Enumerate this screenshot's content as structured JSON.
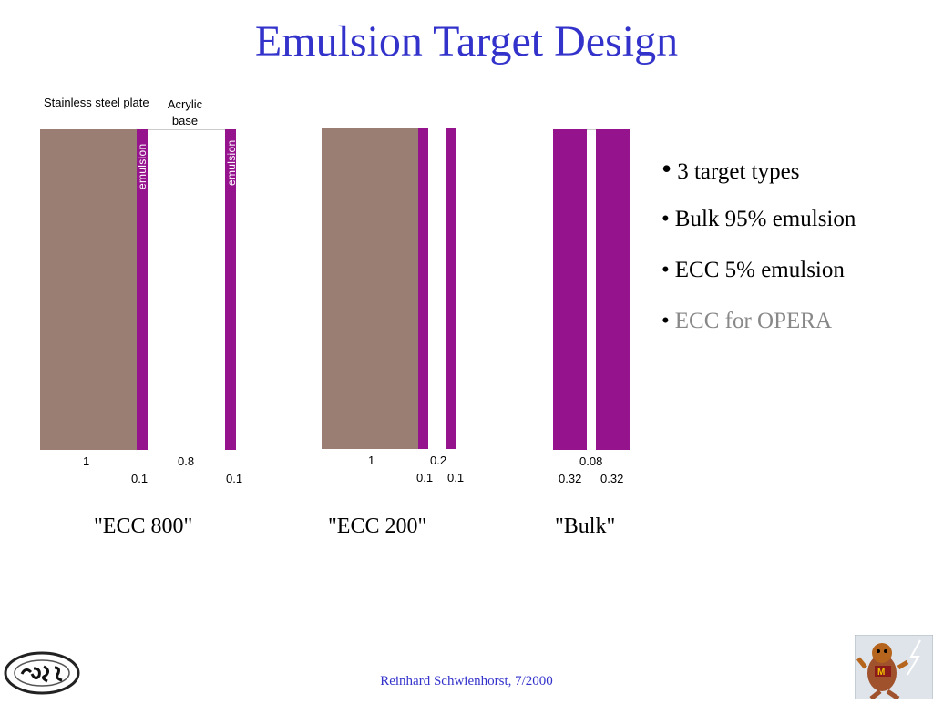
{
  "slide": {
    "title": "Emulsion Target Design",
    "footer": "Reinhard Schwienhorst, 7/2000"
  },
  "colors": {
    "steel": "#9b7e73",
    "emulsion": "#96138e",
    "acrylic": "#ffffff",
    "title": "#3333cc",
    "highlight": "#888888"
  },
  "targets": {
    "ecc800": {
      "name": "\"ECC 800\"",
      "steel_label": "Stainless steel plate",
      "acrylic_label": "Acrylic base",
      "emulsion_label": "emulsion",
      "dims": {
        "steel": "1",
        "acrylic": "0.8",
        "emulsion_left": "0.1",
        "emulsion_right": "0.1"
      }
    },
    "ecc200": {
      "name": "\"ECC 200\"",
      "dims": {
        "steel": "1",
        "acrylic": "0.2",
        "emulsion_left": "0.1",
        "emulsion_right": "0.1"
      }
    },
    "bulk": {
      "name": "\"Bulk\"",
      "dims": {
        "gap": "0.08",
        "emulsion_left": "0.32",
        "emulsion_right": "0.32"
      }
    }
  },
  "bullets": [
    {
      "text": "3 target  types",
      "color": "#000000"
    },
    {
      "text": "Bulk  95% emulsion",
      "color": "#000000"
    },
    {
      "text": "ECC  5% emulsion",
      "color": "#000000"
    },
    {
      "text": "ECC for OPERA",
      "color": "#888888"
    }
  ],
  "logos": {
    "left_icon": "cdf-logo-icon",
    "right_icon": "gopher-mascot-icon"
  }
}
